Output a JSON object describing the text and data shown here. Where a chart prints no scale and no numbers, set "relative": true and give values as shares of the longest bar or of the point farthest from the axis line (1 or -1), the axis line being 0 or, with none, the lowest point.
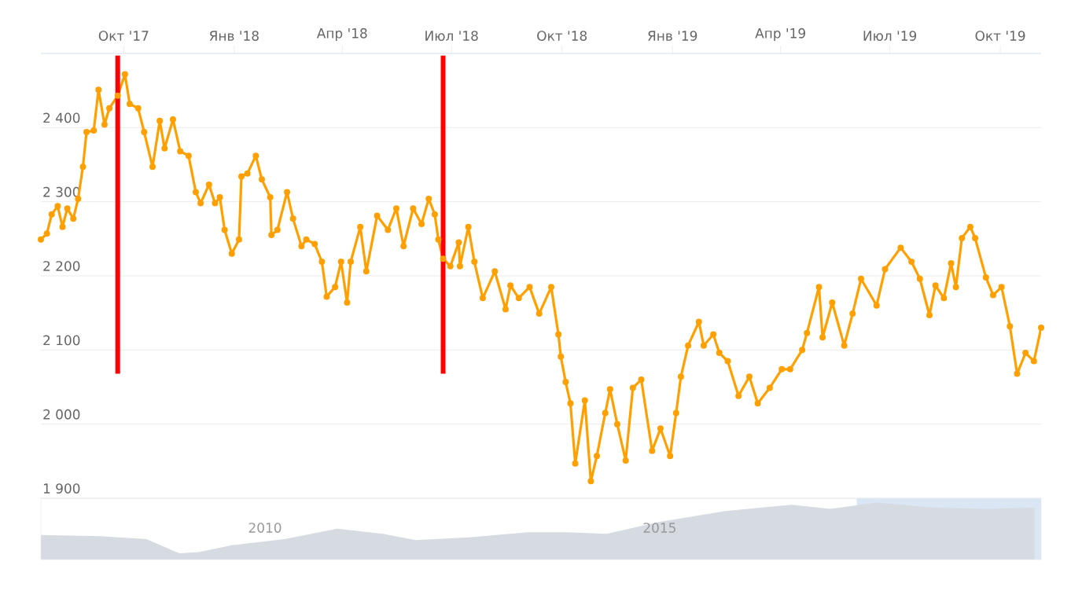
{
  "chart_data": [
    {
      "type": "line",
      "color": "#ffa000",
      "marker": "circle",
      "grid": "y",
      "xlim": [
        "2017-07-24",
        "2019-11-04"
      ],
      "ylim": [
        1900,
        2500
      ],
      "xticks": [
        {
          "value": "2017-10-01",
          "label": "Окт '17"
        },
        {
          "value": "2018-01-01",
          "label": "Янв '18"
        },
        {
          "value": "2018-04-01",
          "label": "Апр '18"
        },
        {
          "value": "2018-07-01",
          "label": "Июл '18"
        },
        {
          "value": "2018-10-01",
          "label": "Окт '18"
        },
        {
          "value": "2019-01-01",
          "label": "Янв '19"
        },
        {
          "value": "2019-04-01",
          "label": "Апр '19"
        },
        {
          "value": "2019-07-01",
          "label": "Июл '19"
        },
        {
          "value": "2019-10-01",
          "label": "Окт '19"
        }
      ],
      "yticks": [
        {
          "value": 1900,
          "label": "1 900"
        },
        {
          "value": 2000,
          "label": "2 000"
        },
        {
          "value": 2100,
          "label": "2 100"
        },
        {
          "value": 2200,
          "label": "2 200"
        },
        {
          "value": 2300,
          "label": "2 300"
        },
        {
          "value": 2400,
          "label": "2 400"
        }
      ],
      "ref_lines": [
        {
          "axis": "x",
          "value": "2017-09-26",
          "color": "#ff0000"
        },
        {
          "axis": "x",
          "value": "2018-06-24",
          "color": "#ff0000"
        }
      ],
      "x": [
        "2017-07-24",
        "2017-07-29",
        "2017-08-02",
        "2017-08-07",
        "2017-08-11",
        "2017-08-15",
        "2017-08-20",
        "2017-08-24",
        "2017-08-28",
        "2017-08-31",
        "2017-09-06",
        "2017-09-10",
        "2017-09-15",
        "2017-09-19",
        "2017-09-26",
        "2017-10-02",
        "2017-10-06",
        "2017-10-13",
        "2017-10-18",
        "2017-10-25",
        "2017-10-31",
        "2017-11-04",
        "2017-11-11",
        "2017-11-17",
        "2017-11-24",
        "2017-11-30",
        "2017-12-04",
        "2017-12-11",
        "2017-12-16",
        "2017-12-20",
        "2017-12-24",
        "2017-12-30",
        "2018-01-05",
        "2018-01-07",
        "2018-01-12",
        "2018-01-19",
        "2018-01-24",
        "2018-01-31",
        "2018-02-01",
        "2018-02-06",
        "2018-02-14",
        "2018-02-19",
        "2018-02-26",
        "2018-03-02",
        "2018-03-09",
        "2018-03-15",
        "2018-03-19",
        "2018-03-26",
        "2018-03-31",
        "2018-04-05",
        "2018-04-08",
        "2018-04-16",
        "2018-04-21",
        "2018-04-30",
        "2018-05-09",
        "2018-05-16",
        "2018-05-22",
        "2018-05-30",
        "2018-06-06",
        "2018-06-12",
        "2018-06-17",
        "2018-06-20",
        "2018-06-24",
        "2018-06-30",
        "2018-07-07",
        "2018-07-08",
        "2018-07-15",
        "2018-07-20",
        "2018-07-27",
        "2018-08-06",
        "2018-08-15",
        "2018-08-19",
        "2018-08-26",
        "2018-09-04",
        "2018-09-12",
        "2018-09-22",
        "2018-09-28",
        "2018-09-30",
        "2018-10-04",
        "2018-10-08",
        "2018-10-12",
        "2018-10-20",
        "2018-10-25",
        "2018-10-30",
        "2018-11-06",
        "2018-11-10",
        "2018-11-16",
        "2018-11-23",
        "2018-11-29",
        "2018-12-06",
        "2018-12-15",
        "2018-12-22",
        "2018-12-30",
        "2019-01-04",
        "2019-01-08",
        "2019-01-14",
        "2019-01-23",
        "2019-01-27",
        "2019-02-04",
        "2019-02-09",
        "2019-02-16",
        "2019-02-25",
        "2019-03-06",
        "2019-03-13",
        "2019-03-23",
        "2019-04-02",
        "2019-04-09",
        "2019-04-19",
        "2019-04-23",
        "2019-05-03",
        "2019-05-06",
        "2019-05-14",
        "2019-05-24",
        "2019-05-31",
        "2019-06-07",
        "2019-06-20",
        "2019-06-27",
        "2019-07-10",
        "2019-07-19",
        "2019-07-26",
        "2019-08-03",
        "2019-08-08",
        "2019-08-15",
        "2019-08-21",
        "2019-08-25",
        "2019-08-30",
        "2019-09-06",
        "2019-09-10",
        "2019-09-19",
        "2019-09-25",
        "2019-10-02",
        "2019-10-09",
        "2019-10-15",
        "2019-10-22",
        "2019-10-29",
        "2019-11-04"
      ],
      "values": [
        2249,
        2257,
        2283,
        2294,
        2266,
        2291,
        2277,
        2304,
        2347,
        2394,
        2396,
        2451,
        2404,
        2426,
        2443,
        2472,
        2432,
        2426,
        2394,
        2347,
        2409,
        2372,
        2411,
        2368,
        2362,
        2313,
        2298,
        2323,
        2298,
        2306,
        2262,
        2230,
        2249,
        2334,
        2338,
        2362,
        2330,
        2306,
        2255,
        2262,
        2313,
        2277,
        2240,
        2249,
        2243,
        2219,
        2172,
        2185,
        2219,
        2164,
        2219,
        2266,
        2206,
        2281,
        2262,
        2291,
        2240,
        2291,
        2270,
        2304,
        2283,
        2249,
        2223,
        2213,
        2245,
        2213,
        2266,
        2219,
        2170,
        2206,
        2155,
        2187,
        2170,
        2185,
        2149,
        2185,
        2121,
        2091,
        2057,
        2028,
        1947,
        2032,
        1923,
        1957,
        2015,
        2047,
        2000,
        1951,
        2049,
        2060,
        1964,
        1994,
        1957,
        2015,
        2064,
        2106,
        2138,
        2106,
        2121,
        2096,
        2085,
        2038,
        2064,
        2028,
        2049,
        2074,
        2074,
        2100,
        2123,
        2185,
        2117,
        2164,
        2106,
        2149,
        2196,
        2160,
        2209,
        2238,
        2219,
        2196,
        2147,
        2187,
        2170,
        2217,
        2185,
        2251,
        2266,
        2251,
        2198,
        2174,
        2185,
        2132,
        2068,
        2096,
        2085,
        2130
      ]
    },
    {
      "type": "area",
      "color": "#d5dbe1",
      "relative": true,
      "xlim": [
        "2007-03",
        "2019-11"
      ],
      "xticks": [
        {
          "value": "2010",
          "label": "2010"
        },
        {
          "value": "2015",
          "label": "2015"
        }
      ],
      "bands": [
        {
          "axis": "x",
          "from": "2017-07",
          "to": "2019-11",
          "color": "#dbe6f4"
        }
      ],
      "x": [
        "2007-03",
        "2007-12",
        "2008-07",
        "2008-12",
        "2009-03",
        "2009-08",
        "2010-04",
        "2010-12",
        "2011-07",
        "2011-12",
        "2012-08",
        "2013-05",
        "2013-11",
        "2014-05",
        "2015-01",
        "2015-11",
        "2016-09",
        "2017-03",
        "2017-10",
        "2018-07",
        "2019-03",
        "2019-10"
      ],
      "values": [
        0.43,
        0.41,
        0.36,
        0.11,
        0.13,
        0.25,
        0.36,
        0.54,
        0.45,
        0.34,
        0.39,
        0.48,
        0.48,
        0.45,
        0.66,
        0.85,
        0.96,
        0.89,
        1,
        0.91,
        0.89,
        0.91
      ]
    }
  ]
}
